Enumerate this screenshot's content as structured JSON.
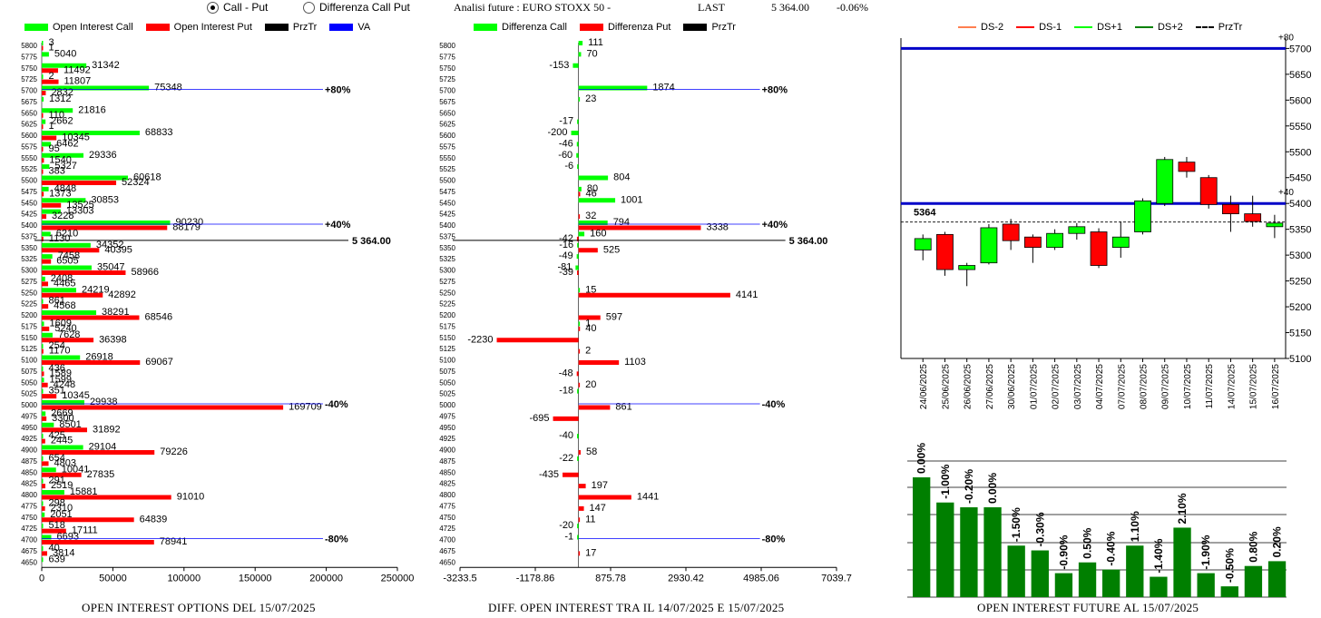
{
  "header": {
    "radio_call_put": "Call - Put",
    "radio_diff": "Differenza Call Put",
    "analysis_label": "Analisi future : EURO STOXX 50 -",
    "last_label": "LAST",
    "last_value": "5 364.00",
    "last_change": "-0.06%"
  },
  "legend_left": [
    {
      "label": "Open Interest Call",
      "color": "#00ff00",
      "kind": "box"
    },
    {
      "label": "Open Interest Put",
      "color": "#ff0000",
      "kind": "box"
    },
    {
      "label": "PrzTr",
      "color": "#000000",
      "kind": "box"
    },
    {
      "label": "VA",
      "color": "#0000ff",
      "kind": "box"
    }
  ],
  "legend_mid": [
    {
      "label": "Differenza Call",
      "color": "#00ff00",
      "kind": "box"
    },
    {
      "label": "Differenza Put",
      "color": "#ff0000",
      "kind": "box"
    },
    {
      "label": "PrzTr",
      "color": "#000000",
      "kind": "box"
    }
  ],
  "legend_right": [
    {
      "label": "DS-2",
      "color": "#ff7f50",
      "kind": "line"
    },
    {
      "label": "DS-1",
      "color": "#ff0000",
      "kind": "line"
    },
    {
      "label": "DS+1",
      "color": "#00ff00",
      "kind": "line"
    },
    {
      "label": "DS+2",
      "color": "#008000",
      "kind": "line"
    },
    {
      "label": "PrzTr",
      "color": "#000000",
      "kind": "dash"
    }
  ],
  "captions": {
    "left": "OPEN INTEREST OPTIONS DEL 15/07/2025",
    "mid": "DIFF. OPEN INTEREST TRA IL 14/07/2025 E 15/07/2025",
    "right": "OPEN INTEREST FUTURE AL 15/07/2025"
  },
  "chart_data": [
    {
      "type": "bar",
      "orientation": "horizontal",
      "strikes": [
        5800,
        5775,
        5750,
        5725,
        5700,
        5675,
        5650,
        5625,
        5600,
        5575,
        5550,
        5525,
        5500,
        5475,
        5450,
        5425,
        5400,
        5375,
        5350,
        5325,
        5300,
        5275,
        5250,
        5225,
        5200,
        5175,
        5150,
        5125,
        5100,
        5075,
        5050,
        5025,
        5000,
        4975,
        4950,
        4925,
        4900,
        4875,
        4850,
        4825,
        4800,
        4775,
        4750,
        4725,
        4700,
        4675,
        4650
      ],
      "series": [
        {
          "name": "Open Interest Call",
          "color": "#00ff00",
          "values": [
            3,
            5040,
            31342,
            2,
            75348,
            1312,
            21816,
            2662,
            68833,
            6462,
            29336,
            5327,
            60618,
            4848,
            30853,
            13303,
            90230,
            6210,
            34352,
            7458,
            35047,
            2408,
            24219,
            861,
            38291,
            1609,
            7628,
            254,
            26918,
            436,
            1599,
            351,
            29938,
            2669,
            8501,
            425,
            29104,
            654,
            10041,
            291,
            15881,
            298,
            2051,
            518,
            6693,
            40,
            639
          ]
        },
        {
          "name": "Open Interest Put",
          "color": "#ff0000",
          "values": [
            1,
            null,
            11492,
            11807,
            2832,
            null,
            110,
            1,
            10345,
            95,
            1540,
            383,
            52324,
            1373,
            13525,
            3228,
            88179,
            1130,
            40395,
            6505,
            58966,
            4465,
            42892,
            4568,
            68546,
            5240,
            36398,
            1170,
            69067,
            1589,
            4248,
            10345,
            169709,
            3300,
            31892,
            2445,
            79226,
            4803,
            27835,
            2519,
            91010,
            2310,
            64839,
            17111,
            78941,
            3814,
            null
          ]
        }
      ],
      "xticks": [
        "0",
        "50000",
        "100000",
        "150000",
        "200000",
        "250000"
      ],
      "xlim": [
        0,
        250000
      ],
      "przTr": {
        "strike": 5364,
        "label": "5 364.00"
      },
      "va_lines": [
        {
          "strike": 5700,
          "label": "+80%"
        },
        {
          "strike": 5400,
          "label": "+40%"
        },
        {
          "strike": 5000,
          "label": "-40%"
        },
        {
          "strike": 4700,
          "label": "-80%"
        }
      ]
    },
    {
      "type": "bar",
      "orientation": "horizontal",
      "strikes": [
        5800,
        5775,
        5750,
        5725,
        5700,
        5675,
        5650,
        5625,
        5600,
        5575,
        5550,
        5525,
        5500,
        5475,
        5450,
        5425,
        5400,
        5375,
        5350,
        5325,
        5300,
        5275,
        5250,
        5225,
        5200,
        5175,
        5150,
        5125,
        5100,
        5075,
        5050,
        5025,
        5000,
        4975,
        4950,
        4925,
        4900,
        4875,
        4850,
        4825,
        4800,
        4775,
        4750,
        4725,
        4700,
        4675,
        4650
      ],
      "series": [
        {
          "name": "Differenza Call",
          "color": "#00ff00",
          "values": [
            111,
            70,
            -153,
            null,
            1874,
            23,
            null,
            -17,
            -200,
            -46,
            -60,
            -6,
            804,
            80,
            1001,
            null,
            794,
            160,
            -16,
            -49,
            -81,
            null,
            15,
            null,
            null,
            1,
            null,
            null,
            null,
            null,
            null,
            -18,
            null,
            null,
            null,
            -40,
            null,
            -22,
            null,
            null,
            null,
            null,
            null,
            -20,
            -1,
            null,
            null
          ]
        },
        {
          "name": "Differenza Put",
          "color": "#ff0000",
          "values": [
            null,
            null,
            null,
            null,
            null,
            null,
            null,
            null,
            null,
            null,
            null,
            null,
            null,
            46,
            null,
            32,
            3338,
            -42,
            525,
            null,
            -39,
            null,
            4141,
            null,
            597,
            40,
            -2230,
            2,
            1103,
            -48,
            20,
            null,
            861,
            -695,
            null,
            null,
            58,
            null,
            -435,
            197,
            1441,
            147,
            11,
            null,
            null,
            17,
            null
          ]
        }
      ],
      "xticks": [
        "-3233.5",
        "-1178.86",
        "875.78",
        "2930.42",
        "4985.06",
        "7039.7"
      ],
      "xlim": [
        -3233.5,
        7039.7
      ],
      "przTr": {
        "strike": 5364,
        "label": "5 364.00"
      },
      "va_lines": [
        {
          "strike": 5700,
          "label": "+80%"
        },
        {
          "strike": 5400,
          "label": "+40%"
        },
        {
          "strike": 5000,
          "label": "-40%"
        },
        {
          "strike": 4700,
          "label": "-80%"
        }
      ]
    },
    {
      "type": "candlestick",
      "dates": [
        "24/06/2025",
        "25/06/2025",
        "26/06/2025",
        "27/06/2025",
        "30/06/2025",
        "01/07/2025",
        "02/07/2025",
        "03/07/2025",
        "04/07/2025",
        "07/07/2025",
        "08/07/2025",
        "09/07/2025",
        "10/07/2025",
        "11/07/2025",
        "14/07/2025",
        "15/07/2025",
        "16/07/2025"
      ],
      "ohlc": [
        [
          5310,
          5340,
          5290,
          5332
        ],
        [
          5340,
          5345,
          5260,
          5272
        ],
        [
          5272,
          5285,
          5240,
          5280
        ],
        [
          5285,
          5360,
          5282,
          5353
        ],
        [
          5360,
          5370,
          5310,
          5328
        ],
        [
          5335,
          5340,
          5285,
          5315
        ],
        [
          5315,
          5350,
          5310,
          5342
        ],
        [
          5342,
          5362,
          5330,
          5355
        ],
        [
          5345,
          5352,
          5275,
          5280
        ],
        [
          5315,
          5365,
          5295,
          5335
        ],
        [
          5345,
          5410,
          5340,
          5405
        ],
        [
          5400,
          5490,
          5395,
          5485
        ],
        [
          5480,
          5490,
          5450,
          5462
        ],
        [
          5450,
          5455,
          5390,
          5398
        ],
        [
          5398,
          5415,
          5345,
          5380
        ],
        [
          5380,
          5415,
          5355,
          5365
        ],
        [
          5355,
          5378,
          5333,
          5362
        ]
      ],
      "yticks": [
        5100,
        5150,
        5200,
        5250,
        5300,
        5350,
        5400,
        5450,
        5500,
        5550,
        5600,
        5650,
        5700
      ],
      "ylim": [
        5100,
        5720
      ],
      "przTr": {
        "value": 5364,
        "label": "5364"
      },
      "levels": [
        {
          "value": 5700,
          "label": "+80"
        },
        {
          "value": 5400,
          "label": "+40"
        }
      ]
    },
    {
      "type": "bar",
      "labels": [
        "0.00%",
        "-1.00%",
        "-0.20%",
        "0.00%",
        "-1.50%",
        "-0.30%",
        "-0.90%",
        "0.50%",
        "-0.40%",
        "1.10%",
        "-1.40%",
        "2.10%",
        "-1.90%",
        "-0.50%",
        "0.80%",
        "0.20%"
      ],
      "values": [
        100,
        79,
        75,
        75,
        43,
        39,
        20,
        29,
        23,
        43,
        17,
        58,
        20,
        9,
        26,
        30
      ]
    }
  ]
}
